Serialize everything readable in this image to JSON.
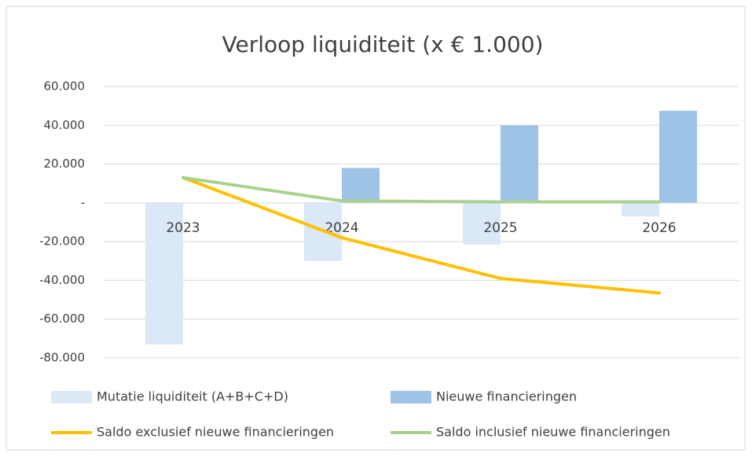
{
  "chart_data": {
    "type": "bar",
    "title": "Verloop liquiditeit  (x € 1.000)",
    "categories": [
      "2023",
      "2024",
      "2025",
      "2026"
    ],
    "series": [
      {
        "name": "Mutatie liquiditeit (A+B+C+D)",
        "type": "bar",
        "color": "#dae8f7",
        "values": [
          -73000,
          -30000,
          -21500,
          -7000
        ]
      },
      {
        "name": "Nieuwe financieringen",
        "type": "bar",
        "color": "#9dc3e6",
        "values": [
          0,
          18000,
          40000,
          47500
        ]
      },
      {
        "name": "Saldo exclusief nieuwe financieringen",
        "type": "line",
        "color": "#ffc000",
        "values": [
          13000,
          -18000,
          -39000,
          -46500
        ]
      },
      {
        "name": "Saldo inclusief nieuwe financieringen",
        "type": "line",
        "color": "#a9d18e",
        "values": [
          13000,
          1000,
          500,
          500
        ]
      }
    ],
    "ylim": [
      -80000,
      60000
    ],
    "yticks": [
      {
        "value": -80000,
        "label": "-80.000"
      },
      {
        "value": -60000,
        "label": "-60.000"
      },
      {
        "value": -40000,
        "label": "-40.000"
      },
      {
        "value": -20000,
        "label": "-20.000"
      },
      {
        "value": 0,
        "label": "-"
      },
      {
        "value": 20000,
        "label": "20.000"
      },
      {
        "value": 40000,
        "label": "40.000"
      },
      {
        "value": 60000,
        "label": "60.000"
      }
    ],
    "grid": true,
    "legend": "bottom"
  }
}
